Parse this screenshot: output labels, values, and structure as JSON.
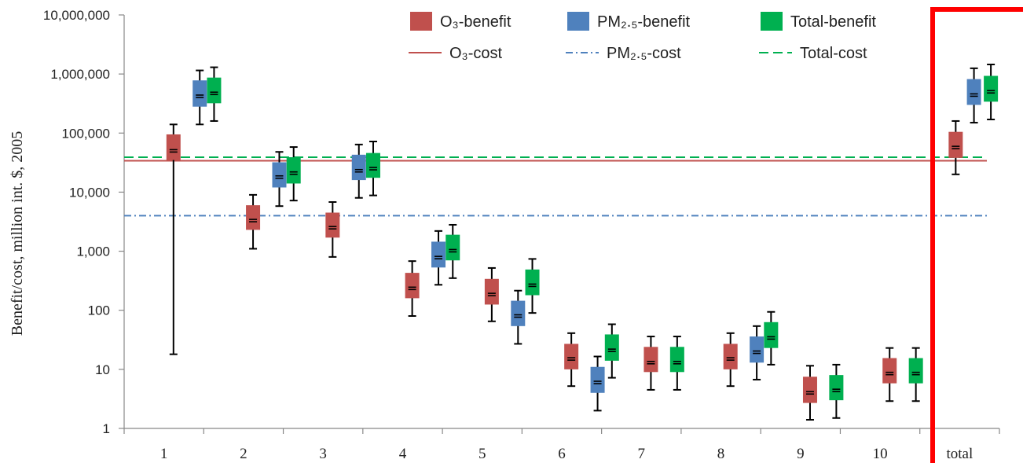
{
  "chart_data": {
    "type": "box",
    "yscale": "log",
    "ylim": [
      1,
      10000000
    ],
    "ylabel": "Benefit/cost, million int. $, 2005",
    "yticks": [
      "1",
      "10",
      "100",
      "1,000",
      "10,000",
      "100,000",
      "1,000,000",
      "10,000,000"
    ],
    "categories": [
      "1",
      "2",
      "3",
      "4",
      "5",
      "6",
      "7",
      "8",
      "9",
      "10",
      "total"
    ],
    "colors": {
      "o3": "#c0504d",
      "pm25": "#4f81bd",
      "total": "#00b050",
      "highlight": "#ff0000"
    },
    "series": [
      {
        "name": "O3-benefit",
        "key": "o3",
        "boxes": [
          {
            "category": "1",
            "whisker_low": 18,
            "box_low": 35000,
            "median": 50000,
            "box_high": 95000,
            "whisker_high": 140000
          },
          {
            "category": "2",
            "whisker_low": 1100,
            "box_low": 2300,
            "median": 3300,
            "box_high": 6000,
            "whisker_high": 9000
          },
          {
            "category": "3",
            "whisker_low": 800,
            "box_low": 1700,
            "median": 2500,
            "box_high": 4500,
            "whisker_high": 6800
          },
          {
            "category": "4",
            "whisker_low": 80,
            "box_low": 160,
            "median": 235,
            "box_high": 430,
            "whisker_high": 680
          },
          {
            "category": "5",
            "whisker_low": 65,
            "box_low": 125,
            "median": 185,
            "box_high": 340,
            "whisker_high": 520
          },
          {
            "category": "6",
            "whisker_low": 5.2,
            "box_low": 10,
            "median": 15,
            "box_high": 27,
            "whisker_high": 41
          },
          {
            "category": "7",
            "whisker_low": 4.5,
            "box_low": 9,
            "median": 13,
            "box_high": 24,
            "whisker_high": 36
          },
          {
            "category": "8",
            "whisker_low": 5.2,
            "box_low": 10,
            "median": 15,
            "box_high": 27,
            "whisker_high": 41
          },
          {
            "category": "9",
            "whisker_low": 1.4,
            "box_low": 2.7,
            "median": 4,
            "box_high": 7.5,
            "whisker_high": 11.5
          },
          {
            "category": "10",
            "whisker_low": 2.9,
            "box_low": 5.8,
            "median": 8.5,
            "box_high": 15.5,
            "whisker_high": 23
          },
          {
            "category": "total",
            "whisker_low": 20000,
            "box_low": 38000,
            "median": 57000,
            "box_high": 105000,
            "whisker_high": 160000
          }
        ]
      },
      {
        "name": "PM2.5-benefit",
        "key": "pm25",
        "boxes": [
          {
            "category": "1",
            "whisker_low": 140000,
            "box_low": 280000,
            "median": 420000,
            "box_high": 780000,
            "whisker_high": 1150000
          },
          {
            "category": "2",
            "whisker_low": 5800,
            "box_low": 12000,
            "median": 18000,
            "box_high": 32000,
            "whisker_high": 48000
          },
          {
            "category": "3",
            "whisker_low": 8000,
            "box_low": 16000,
            "median": 23000,
            "box_high": 43000,
            "whisker_high": 64000
          },
          {
            "category": "4",
            "whisker_low": 270,
            "box_low": 530,
            "median": 780,
            "box_high": 1450,
            "whisker_high": 2200
          },
          {
            "category": "5",
            "whisker_low": 27,
            "box_low": 54,
            "median": 80,
            "box_high": 145,
            "whisker_high": 215
          },
          {
            "category": "6",
            "whisker_low": 2,
            "box_low": 4,
            "median": 6,
            "box_high": 11,
            "whisker_high": 16.5
          },
          {
            "category": "8",
            "whisker_low": 6.7,
            "box_low": 13,
            "median": 19.5,
            "box_high": 36,
            "whisker_high": 54
          },
          {
            "category": "total",
            "whisker_low": 150000,
            "box_low": 300000,
            "median": 440000,
            "box_high": 820000,
            "whisker_high": 1250000
          }
        ]
      },
      {
        "name": "Total-benefit",
        "key": "total",
        "boxes": [
          {
            "category": "1",
            "whisker_low": 160000,
            "box_low": 320000,
            "median": 470000,
            "box_high": 870000,
            "whisker_high": 1300000
          },
          {
            "category": "2",
            "whisker_low": 7200,
            "box_low": 14000,
            "median": 21000,
            "box_high": 39000,
            "whisker_high": 58000
          },
          {
            "category": "3",
            "whisker_low": 8800,
            "box_low": 17500,
            "median": 25000,
            "box_high": 46000,
            "whisker_high": 72000
          },
          {
            "category": "4",
            "whisker_low": 350,
            "box_low": 700,
            "median": 1020,
            "box_high": 1900,
            "whisker_high": 2800
          },
          {
            "category": "5",
            "whisker_low": 90,
            "box_low": 180,
            "median": 265,
            "box_high": 490,
            "whisker_high": 740
          },
          {
            "category": "6",
            "whisker_low": 7.2,
            "box_low": 14,
            "median": 21,
            "box_high": 39,
            "whisker_high": 58
          },
          {
            "category": "7",
            "whisker_low": 4.5,
            "box_low": 9,
            "median": 13,
            "box_high": 24,
            "whisker_high": 36
          },
          {
            "category": "8",
            "whisker_low": 12,
            "box_low": 23,
            "median": 34,
            "box_high": 63,
            "whisker_high": 94
          },
          {
            "category": "9",
            "whisker_low": 1.5,
            "box_low": 3,
            "median": 4.4,
            "box_high": 8,
            "whisker_high": 12
          },
          {
            "category": "10",
            "whisker_low": 2.9,
            "box_low": 5.8,
            "median": 8.5,
            "box_high": 15.5,
            "whisker_high": 23
          },
          {
            "category": "total",
            "whisker_low": 170000,
            "box_low": 340000,
            "median": 500000,
            "box_high": 930000,
            "whisker_high": 1450000
          }
        ]
      }
    ],
    "cost_lines": [
      {
        "name": "O3-cost",
        "key": "o3",
        "style": "solid",
        "value": 34000
      },
      {
        "name": "PM2.5-cost",
        "key": "pm25",
        "style": "dash-dot",
        "value": 4000
      },
      {
        "name": "Total-cost",
        "key": "total",
        "style": "dashed",
        "value": 39000
      }
    ],
    "highlight": "total",
    "legend": {
      "placement": "top-right",
      "items": [
        {
          "label": "O₃-benefit",
          "key": "o3",
          "marker": "box"
        },
        {
          "label": "PM₂.₅-benefit",
          "key": "pm25",
          "marker": "box"
        },
        {
          "label": "Total-benefit",
          "key": "total",
          "marker": "box"
        },
        {
          "label": "O₃-cost",
          "key": "o3",
          "marker": "solid"
        },
        {
          "label": "PM₂.₅-cost",
          "key": "pm25",
          "marker": "dash-dot"
        },
        {
          "label": "Total-cost",
          "key": "total",
          "marker": "dashed"
        }
      ]
    }
  }
}
